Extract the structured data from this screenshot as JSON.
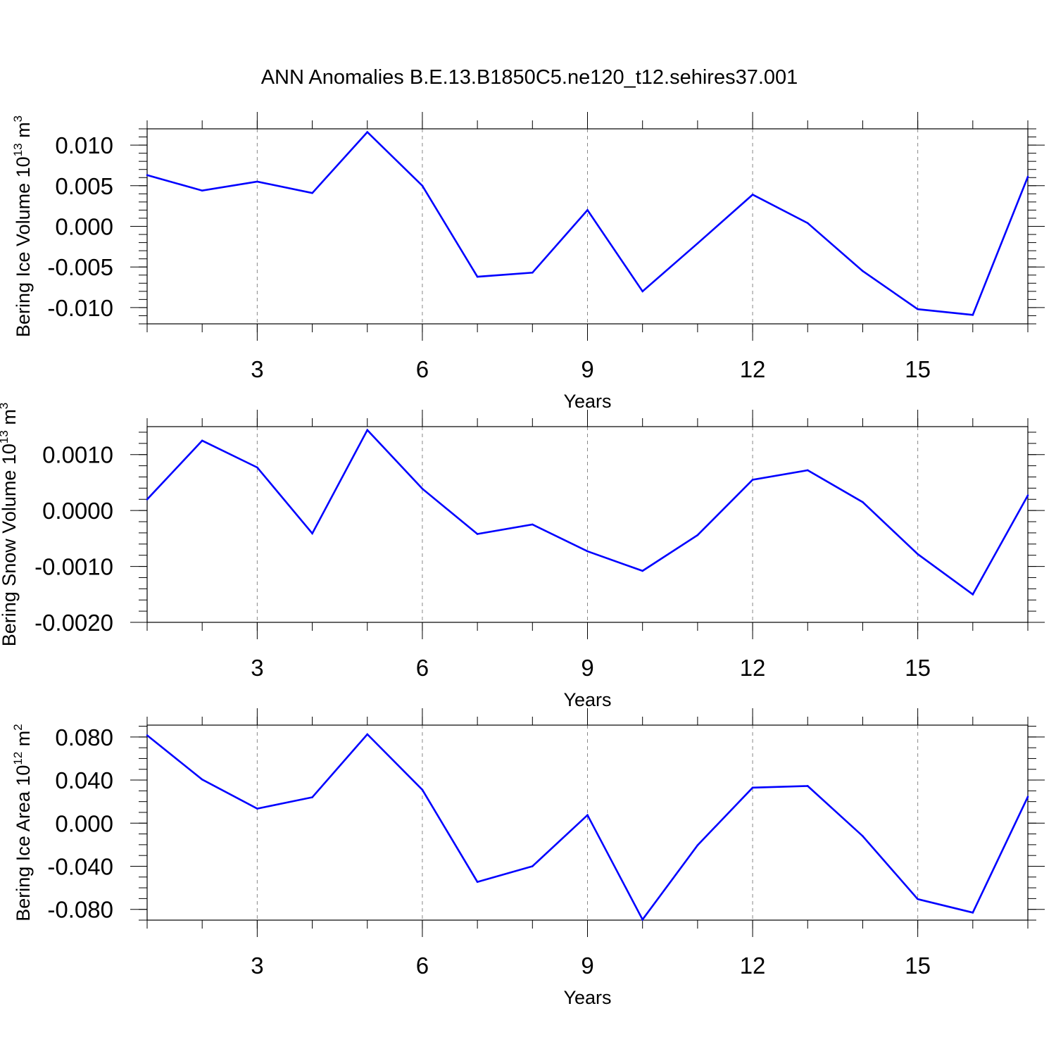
{
  "title": "ANN Anomalies B.E.13.B1850C5.ne120_t12.sehires37.001",
  "colors": {
    "series": "#0000ff",
    "axes": "#000000",
    "grid": "#888888"
  },
  "chart_data": [
    {
      "type": "line",
      "ylabel_text": "Bering Ice Volume 10",
      "ylabel_exp": "13",
      "ylabel_unit": " m",
      "ylabel_unit_exp": "3",
      "xlabel": "Years",
      "xlim": [
        1,
        17
      ],
      "xticks": [
        3,
        6,
        9,
        12,
        15
      ],
      "xtick_labels": [
        "3",
        "6",
        "9",
        "12",
        "15"
      ],
      "xgrid": true,
      "ylim": [
        -0.012,
        0.012
      ],
      "yticks": [
        -0.01,
        -0.005,
        0.0,
        0.005,
        0.01
      ],
      "ytick_labels": [
        "-0.010",
        "-0.005",
        "0.000",
        "0.005",
        "0.010"
      ],
      "yminor_step": 0.001,
      "x": [
        1,
        2,
        3,
        4,
        5,
        6,
        7,
        8,
        9,
        10,
        11,
        12,
        13,
        14,
        15,
        16,
        17
      ],
      "values": [
        0.0063,
        0.0044,
        0.0055,
        0.0041,
        0.0116,
        0.005,
        -0.0062,
        -0.0057,
        0.002,
        -0.008,
        -0.0021,
        0.0039,
        0.0004,
        -0.0055,
        -0.0102,
        -0.0109,
        0.0061
      ]
    },
    {
      "type": "line",
      "ylabel_text": "Bering Snow Volume 10",
      "ylabel_exp": "13",
      "ylabel_unit": " m",
      "ylabel_unit_exp": "3",
      "xlabel": "Years",
      "xlim": [
        1,
        17
      ],
      "xticks": [
        3,
        6,
        9,
        12,
        15
      ],
      "xtick_labels": [
        "3",
        "6",
        "9",
        "12",
        "15"
      ],
      "xgrid": true,
      "ylim": [
        -0.002,
        0.0015
      ],
      "yticks": [
        -0.002,
        -0.001,
        0.0,
        0.001
      ],
      "ytick_labels": [
        "-0.0020",
        "-0.0010",
        "0.0000",
        "0.0010"
      ],
      "yminor_step": 0.0002,
      "x": [
        1,
        2,
        3,
        4,
        5,
        6,
        7,
        8,
        9,
        10,
        11,
        12,
        13,
        14,
        15,
        16,
        17
      ],
      "values": [
        0.0002,
        0.00125,
        0.00077,
        -0.00041,
        0.00144,
        0.00039,
        -0.00042,
        -0.00025,
        -0.00073,
        -0.00108,
        -0.00044,
        0.00055,
        0.00072,
        0.00015,
        -0.00078,
        -0.0015,
        0.00027
      ]
    },
    {
      "type": "line",
      "ylabel_text": "Bering Ice Area 10",
      "ylabel_exp": "12",
      "ylabel_unit": " m",
      "ylabel_unit_exp": "2",
      "xlabel": "Years",
      "xlim": [
        1,
        17
      ],
      "xticks": [
        3,
        6,
        9,
        12,
        15
      ],
      "xtick_labels": [
        "3",
        "6",
        "9",
        "12",
        "15"
      ],
      "xgrid": true,
      "ylim": [
        -0.09,
        0.091
      ],
      "yticks": [
        -0.08,
        -0.04,
        0.0,
        0.04,
        0.08
      ],
      "ytick_labels": [
        "-0.080",
        "-0.040",
        "0.000",
        "0.040",
        "0.080"
      ],
      "yminor_step": 0.01,
      "x": [
        1,
        2,
        3,
        4,
        5,
        6,
        7,
        8,
        9,
        10,
        11,
        12,
        13,
        14,
        15,
        16,
        17
      ],
      "values": [
        0.0815,
        0.0405,
        0.0135,
        0.024,
        0.0825,
        0.031,
        -0.0545,
        -0.04,
        0.0075,
        -0.0895,
        -0.0205,
        0.033,
        0.0345,
        -0.012,
        -0.0705,
        -0.083,
        0.0245
      ]
    }
  ]
}
